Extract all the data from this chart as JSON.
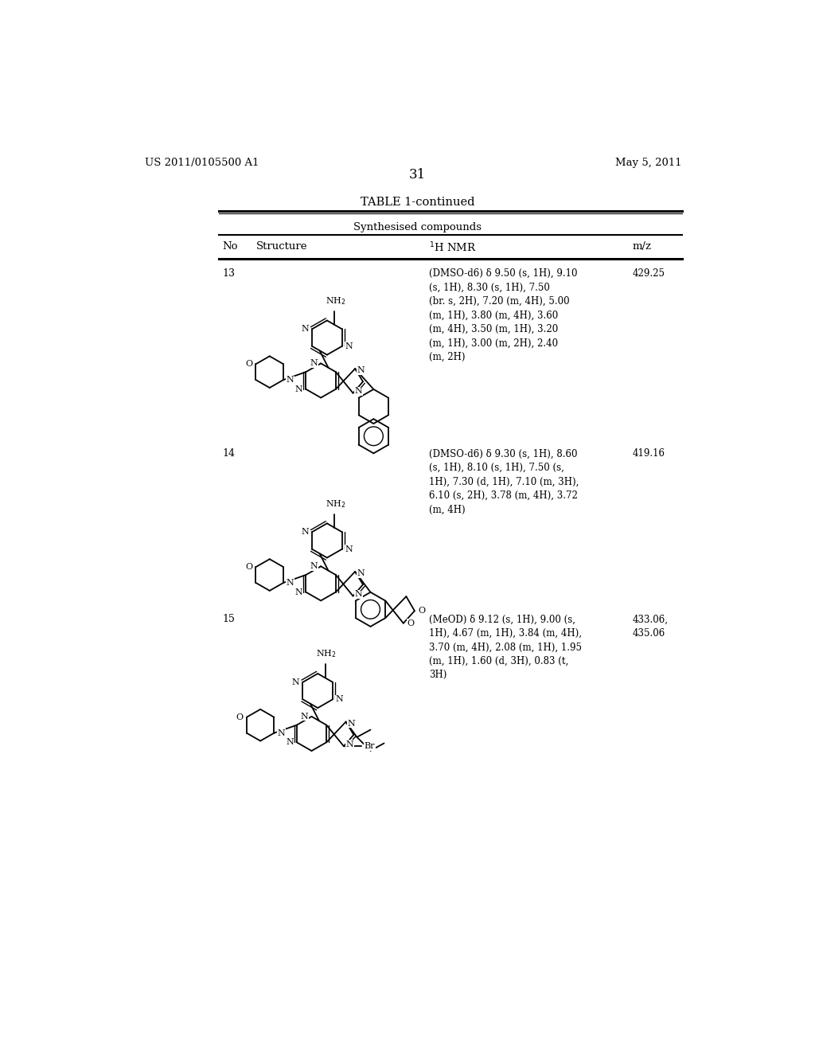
{
  "background_color": "#ffffff",
  "page_width": 10.24,
  "page_height": 13.2,
  "header_left": "US 2011/0105500 A1",
  "header_right": "May 5, 2011",
  "page_number": "31",
  "table_title": "TABLE 1-continued",
  "table_subtitle": "Synthesised compounds",
  "entries": [
    {
      "no": "13",
      "nmr": "(DMSO-d6) δ 9.50 (s, 1H), 9.10\n(s, 1H), 8.30 (s, 1H), 7.50\n(br. s, 2H), 7.20 (m, 4H), 5.00\n(m, 1H), 3.80 (m, 4H), 3.60\n(m, 4H), 3.50 (m, 1H), 3.20\n(m, 1H), 3.00 (m, 2H), 2.40\n(m, 2H)",
      "mz": "429.25"
    },
    {
      "no": "14",
      "nmr": "(DMSO-d6) δ 9.30 (s, 1H), 8.60\n(s, 1H), 8.10 (s, 1H), 7.50 (s,\n1H), 7.30 (d, 1H), 7.10 (m, 3H),\n6.10 (s, 2H), 3.78 (m, 4H), 3.72\n(m, 4H)",
      "mz": "419.16"
    },
    {
      "no": "15",
      "nmr": "(MeOD) δ 9.12 (s, 1H), 9.00 (s,\n1H), 4.67 (m, 1H), 3.84 (m, 4H),\n3.70 (m, 4H), 2.08 (m, 1H), 1.95\n(m, 1H), 1.60 (d, 3H), 0.83 (t,\n3H)",
      "mz": "433.06,\n435.06"
    }
  ]
}
